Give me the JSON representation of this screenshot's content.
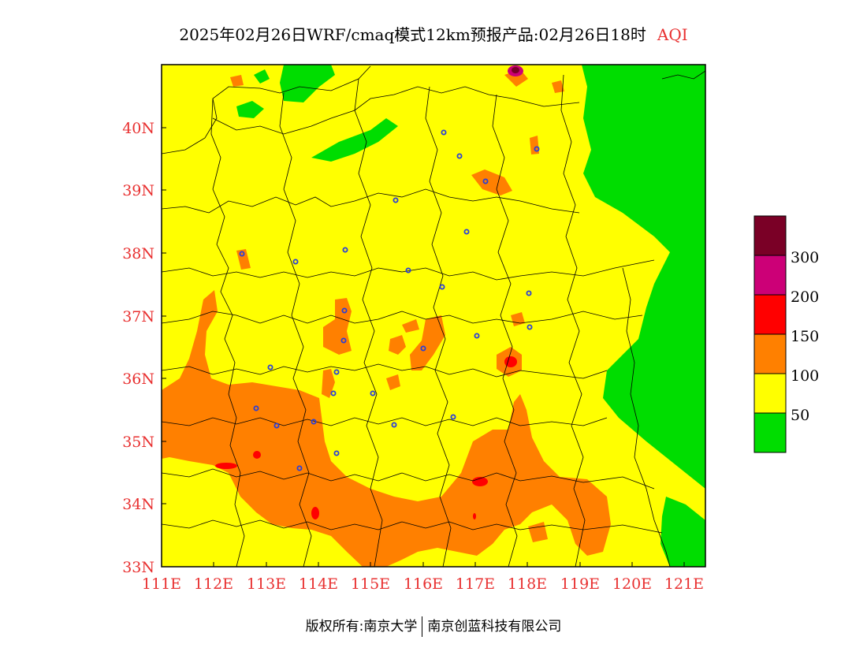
{
  "title": {
    "main": "2025年02月26日WRF/cmaq模式12km预报产品:02月26日18时",
    "variable": "AQI"
  },
  "axes": {
    "x_ticks": [
      "111E",
      "112E",
      "113E",
      "114E",
      "115E",
      "116E",
      "117E",
      "118E",
      "119E",
      "120E",
      "121E"
    ],
    "y_ticks": [
      "33N",
      "34N",
      "35N",
      "36N",
      "37N",
      "38N",
      "39N",
      "40N"
    ]
  },
  "legend": {
    "labels": [
      "50",
      "100",
      "150",
      "200",
      "300"
    ],
    "colors": {
      "good": "#00dd00",
      "moderate": "#ffff00",
      "sensitive": "#ff8000",
      "unhealthy": "#ff0000",
      "very_unhealthy": "#cc0077",
      "hazardous": "#7a0026"
    }
  },
  "footer": {
    "left": "版权所有:南京大学",
    "right": "南京创蓝科技有限公司"
  }
}
